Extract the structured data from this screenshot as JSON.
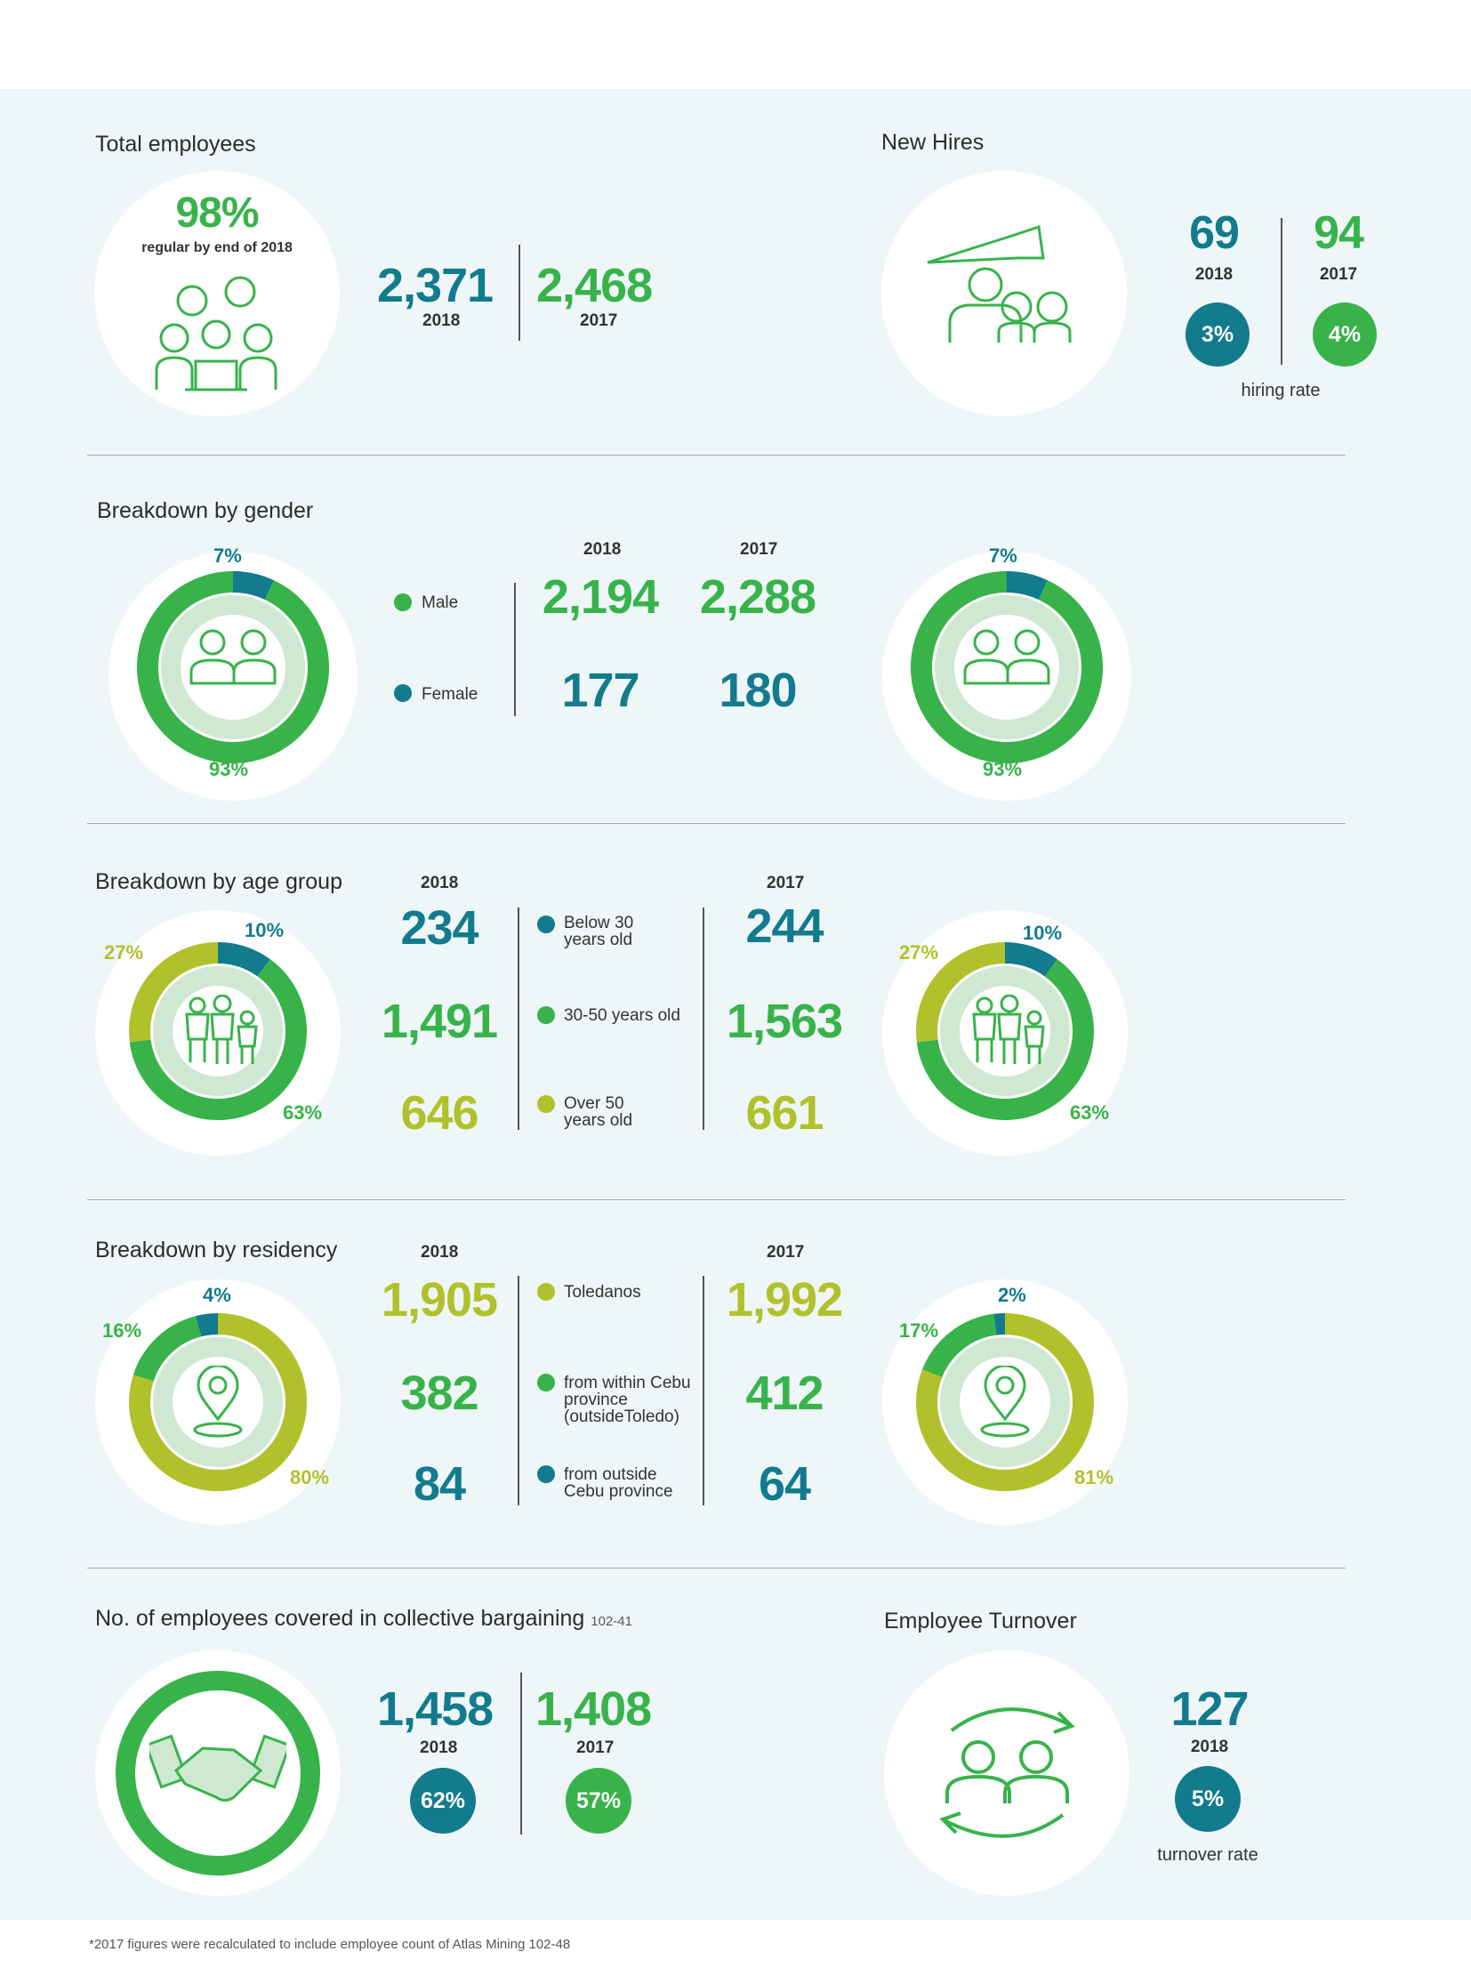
{
  "total_employees": {
    "title": "Total employees",
    "regular_pct": "98%",
    "regular_note": "regular by end of 2018",
    "value_2018": "2,371",
    "label_2018": "2018",
    "value_2017": "2,468",
    "label_2017": "2017"
  },
  "new_hires": {
    "title": "New Hires",
    "value_2018": "69",
    "label_2018": "2018",
    "value_2017": "94",
    "label_2017": "2017",
    "rate_2018": "3%",
    "rate_2017": "4%",
    "rate_label": "hiring rate"
  },
  "gender": {
    "title": "Breakdown by gender",
    "year_2018": "2018",
    "year_2017": "2017",
    "male_label": "Male",
    "female_label": "Female",
    "male_2018": "2,194",
    "male_2017": "2,288",
    "female_2018": "177",
    "female_2017": "180",
    "donut_2018": {
      "female_pct": "7%",
      "male_pct": "93%",
      "female_share": 0.07
    },
    "donut_2017": {
      "female_pct": "7%",
      "male_pct": "93%",
      "female_share": 0.07
    }
  },
  "age": {
    "title": "Breakdown by age group",
    "year_2018": "2018",
    "year_2017": "2017",
    "labels": {
      "below30": "Below 30 years old",
      "mid": "30-50 years old",
      "over50": "Over 50 years old"
    },
    "values_2018": {
      "below30": "234",
      "mid": "1,491",
      "over50": "646"
    },
    "values_2017": {
      "below30": "244",
      "mid": "1,563",
      "over50": "661"
    },
    "donut_2018": {
      "below30_pct": "10%",
      "mid_pct": "63%",
      "over50_pct": "27%",
      "shares": [
        0.1,
        0.63,
        0.27
      ]
    },
    "donut_2017": {
      "below30_pct": "10%",
      "mid_pct": "63%",
      "over50_pct": "27%",
      "shares": [
        0.1,
        0.63,
        0.27
      ]
    }
  },
  "residency": {
    "title": "Breakdown by residency",
    "year_2018": "2018",
    "year_2017": "2017",
    "labels": {
      "toledanos": "Toledanos",
      "within": "from within Cebu province (outsideToledo)",
      "outside": "from outside Cebu province"
    },
    "values_2018": {
      "toledanos": "1,905",
      "within": "382",
      "outside": "84"
    },
    "values_2017": {
      "toledanos": "1,992",
      "within": "412",
      "outside": "64"
    },
    "donut_2018": {
      "outside_pct": "4%",
      "within_pct": "16%",
      "toledanos_pct": "80%",
      "shares": [
        0.04,
        0.16,
        0.8
      ]
    },
    "donut_2017": {
      "outside_pct": "2%",
      "within_pct": "17%",
      "toledanos_pct": "81%",
      "shares": [
        0.02,
        0.17,
        0.81
      ]
    }
  },
  "bargaining": {
    "title": "No. of employees covered in collective bargaining",
    "ref": "102-41",
    "value_2018": "1,458",
    "label_2018": "2018",
    "value_2017": "1,408",
    "label_2017": "2017",
    "pct_2018": "62%",
    "pct_2017": "57%"
  },
  "turnover": {
    "title": "Employee Turnover",
    "value_2018": "127",
    "label_2018": "2018",
    "rate": "5%",
    "rate_label": "turnover rate"
  },
  "footnote": "*2017 figures were recalculated to include employee count of Atlas Mining 102-48",
  "colors": {
    "teal": "#127b8d",
    "green": "#37b34a",
    "olive": "#b1c12b",
    "light_green": "#cfe8d1",
    "panel": "#eef6f8"
  }
}
